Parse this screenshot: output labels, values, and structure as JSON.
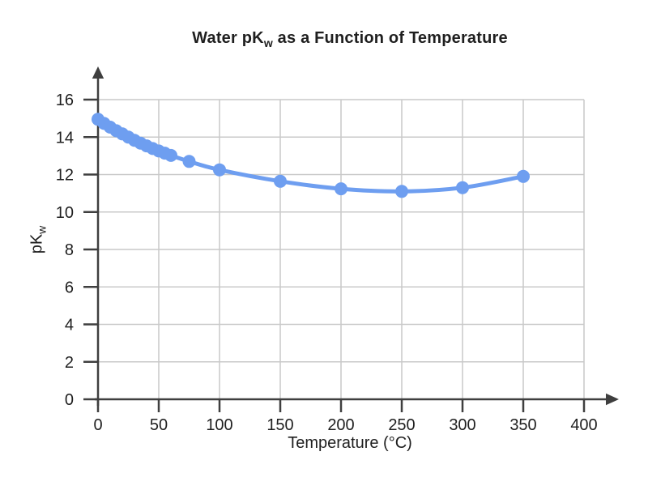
{
  "chart_data": {
    "type": "line",
    "title": "Water pKw as a Function of Temperature",
    "title_parts": {
      "prefix": "Water pK",
      "sub": "w",
      "suffix": " as a Function of Temperature"
    },
    "xlabel": "Temperature (°C)",
    "ylabel": "pKw",
    "ylabel_parts": {
      "prefix": "pK",
      "sub": "w"
    },
    "x": [
      0,
      5,
      10,
      15,
      20,
      25,
      30,
      35,
      40,
      45,
      50,
      55,
      60,
      75,
      100,
      150,
      200,
      250,
      300,
      350
    ],
    "y": [
      14.95,
      14.73,
      14.53,
      14.34,
      14.17,
      14.0,
      13.83,
      13.68,
      13.53,
      13.39,
      13.26,
      13.14,
      13.02,
      12.7,
      12.25,
      11.64,
      11.24,
      11.1,
      11.3,
      11.9
    ],
    "xlim": [
      0,
      400
    ],
    "ylim": [
      0,
      16
    ],
    "x_ticks": [
      0,
      50,
      100,
      150,
      200,
      250,
      300,
      350,
      400
    ],
    "y_ticks": [
      0,
      2,
      4,
      6,
      8,
      10,
      12,
      14,
      16
    ],
    "grid": true,
    "legend": false,
    "marker": "circle",
    "series_color": "#6e9ef0",
    "grid_color": "#c9c9c9",
    "axis_color": "#3f3f3f",
    "text_color": "#1f1f1f"
  }
}
